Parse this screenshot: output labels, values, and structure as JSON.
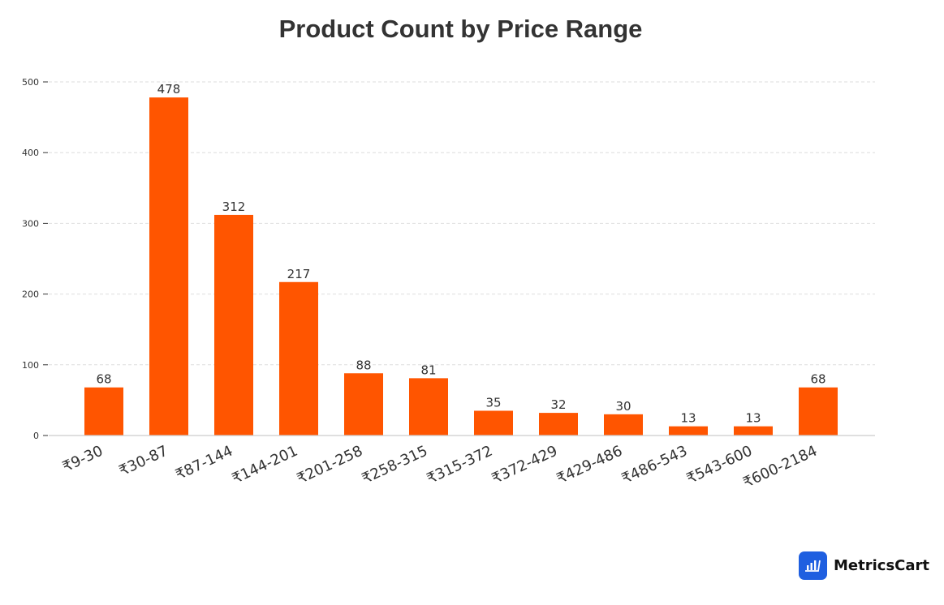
{
  "title": "Product Count by Price Range",
  "brand": {
    "name": "MetricsCart",
    "logo_icon": "bar-chart-cart-icon",
    "logo_color": "#1f5fe0"
  },
  "colors": {
    "bar": "#ff5500",
    "grid": "#dddddd",
    "axis": "#cccccc",
    "text": "#333333"
  },
  "chart_data": {
    "type": "bar",
    "title": "Product Count by Price Range",
    "xlabel": "",
    "ylabel": "",
    "categories": [
      "₹9-30",
      "₹30-87",
      "₹87-144",
      "₹144-201",
      "₹201-258",
      "₹258-315",
      "₹315-372",
      "₹372-429",
      "₹429-486",
      "₹486-543",
      "₹543-600",
      "₹600-2184"
    ],
    "values": [
      68,
      478,
      312,
      217,
      88,
      81,
      35,
      32,
      30,
      13,
      13,
      68
    ],
    "ylim": [
      0,
      500
    ],
    "yticks": [
      0,
      100,
      200,
      300,
      400,
      500
    ],
    "grid": true,
    "grid_style": "dashed-horizontal",
    "data_labels": true,
    "legend": null
  }
}
